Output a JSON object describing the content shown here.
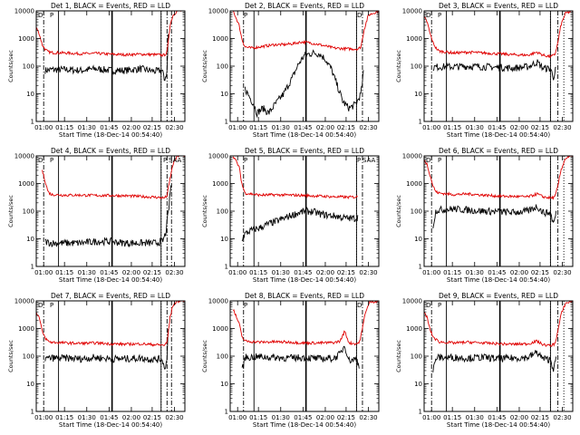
{
  "colors": {
    "events": "#000000",
    "lld": "#e00000",
    "axis": "#000000",
    "background": "#ffffff"
  },
  "xlabel": "Start Time (18-Dec-14 00:54:40)",
  "ylabel": "Counts/sec",
  "xticks": [
    "01:00",
    "01:15",
    "01:30",
    "01:45",
    "02:00",
    "02:15",
    "02:30"
  ],
  "yticks": [
    "1",
    "10",
    "100",
    "1000",
    "10000"
  ],
  "chart_data": [
    {
      "type": "line",
      "title": "Det 1, BLACK = Events, RED = LLD",
      "corner_labels": [
        "D",
        "P"
      ],
      "xlim_min": [
        0,
        100
      ],
      "ylim": [
        1,
        10000
      ],
      "yscale": "log",
      "vlines": [
        {
          "x": 5,
          "style": "dashdot"
        },
        {
          "x": 15,
          "style": "solid"
        },
        {
          "x": 51,
          "style": "solid"
        },
        {
          "x": 84,
          "style": "solid"
        },
        {
          "x": 84,
          "style": "dotted"
        },
        {
          "x": 88,
          "style": "dashdot"
        },
        {
          "x": 91,
          "style": "dashdot"
        }
      ],
      "series": [
        {
          "id": "lld",
          "x": [
            0,
            2,
            4,
            6,
            8,
            10,
            20,
            30,
            40,
            50,
            60,
            70,
            80,
            86,
            88,
            90,
            92,
            95,
            100
          ],
          "y": [
            2500,
            1500,
            600,
            400,
            330,
            310,
            300,
            280,
            290,
            270,
            260,
            270,
            260,
            250,
            300,
            3000,
            7000,
            10000,
            10000
          ]
        },
        {
          "id": "events",
          "x": [
            6,
            10,
            20,
            30,
            40,
            50,
            60,
            70,
            80,
            85,
            86,
            88,
            89
          ],
          "y": [
            70,
            75,
            75,
            70,
            80,
            70,
            70,
            80,
            65,
            70,
            30,
            60,
            3000
          ]
        }
      ]
    },
    {
      "type": "line",
      "title": "Det 2, BLACK = Events, RED = LLD",
      "corner_labels": [
        "",
        "P",
        "D"
      ],
      "xlim_min": [
        0,
        100
      ],
      "ylim": [
        1,
        10000
      ],
      "yscale": "log",
      "vlines": [
        {
          "x": 9,
          "style": "dashdot"
        },
        {
          "x": 16,
          "style": "solid"
        },
        {
          "x": 51,
          "style": "solid"
        },
        {
          "x": 85,
          "style": "solid"
        },
        {
          "x": 85,
          "style": "dotted"
        },
        {
          "x": 89,
          "style": "dashdot"
        }
      ],
      "series": [
        {
          "id": "lld",
          "x": [
            2,
            6,
            8,
            10,
            14,
            20,
            30,
            36,
            42,
            48,
            54,
            60,
            70,
            80,
            86,
            88,
            90,
            93,
            100
          ],
          "y": [
            10000,
            3000,
            900,
            500,
            450,
            500,
            600,
            600,
            650,
            750,
            700,
            600,
            450,
            420,
            420,
            500,
            2000,
            7000,
            10000
          ]
        },
        {
          "id": "events",
          "x": [
            10,
            16,
            18,
            22,
            26,
            30,
            36,
            42,
            46,
            50,
            56,
            60,
            64,
            68,
            72,
            76,
            80,
            84,
            86,
            88,
            90
          ],
          "y": [
            15,
            4,
            2,
            3,
            2,
            4,
            10,
            40,
            120,
            250,
            300,
            280,
            180,
            80,
            20,
            5,
            3,
            4,
            6,
            10,
            80
          ]
        }
      ]
    },
    {
      "type": "line",
      "title": "Det 3, BLACK = Events, RED = LLD",
      "corner_labels": [
        "D",
        "P"
      ],
      "xlim_min": [
        0,
        100
      ],
      "ylim": [
        1,
        10000
      ],
      "yscale": "log",
      "vlines": [
        {
          "x": 5,
          "style": "dashdot"
        },
        {
          "x": 15,
          "style": "solid"
        },
        {
          "x": 51,
          "style": "solid"
        },
        {
          "x": 85,
          "style": "solid"
        },
        {
          "x": 85,
          "style": "dotted"
        },
        {
          "x": 90,
          "style": "dashdot"
        },
        {
          "x": 94,
          "style": "dotted"
        }
      ],
      "series": [
        {
          "id": "lld",
          "x": [
            0,
            2,
            4,
            6,
            8,
            10,
            20,
            30,
            40,
            50,
            60,
            70,
            76,
            80,
            85,
            88,
            90,
            92,
            95,
            100
          ],
          "y": [
            6000,
            4000,
            1500,
            700,
            450,
            350,
            300,
            320,
            300,
            280,
            260,
            250,
            320,
            250,
            220,
            260,
            700,
            3000,
            8000,
            10000
          ]
        },
        {
          "id": "events",
          "x": [
            6,
            10,
            20,
            30,
            40,
            50,
            60,
            70,
            76,
            80,
            85,
            87,
            89
          ],
          "y": [
            90,
            95,
            95,
            100,
            95,
            90,
            85,
            95,
            140,
            85,
            80,
            40,
            90
          ]
        }
      ]
    },
    {
      "type": "line",
      "title": "Det 4, BLACK = Events, RED = LLD",
      "corner_labels": [
        "D",
        "P",
        "P",
        "SAA"
      ],
      "xlim_min": [
        0,
        100
      ],
      "ylim": [
        1,
        10000
      ],
      "yscale": "log",
      "vlines": [
        {
          "x": 5,
          "style": "dashdot"
        },
        {
          "x": 15,
          "style": "solid"
        },
        {
          "x": 51,
          "style": "solid"
        },
        {
          "x": 84,
          "style": "solid"
        },
        {
          "x": 84,
          "style": "dotted"
        },
        {
          "x": 88,
          "style": "dashdot"
        },
        {
          "x": 91,
          "style": "dashdot"
        }
      ],
      "series": [
        {
          "id": "lld",
          "x": [
            4,
            6,
            8,
            10,
            20,
            30,
            40,
            50,
            60,
            70,
            80,
            86,
            88,
            90,
            92,
            95,
            100
          ],
          "y": [
            3000,
            1200,
            500,
            400,
            380,
            380,
            370,
            370,
            360,
            340,
            320,
            300,
            350,
            1500,
            5000,
            10000,
            10000
          ]
        },
        {
          "id": "events",
          "x": [
            6,
            10,
            20,
            30,
            40,
            50,
            60,
            70,
            80,
            85,
            87,
            89,
            91
          ],
          "y": [
            8,
            7,
            7,
            7,
            8,
            8,
            7,
            7,
            7,
            8,
            15,
            100,
            1500
          ]
        }
      ]
    },
    {
      "type": "line",
      "title": "Det 5, BLACK = Events, RED = LLD",
      "corner_labels": [
        "",
        "P",
        "P",
        "SAA"
      ],
      "xlim_min": [
        0,
        100
      ],
      "ylim": [
        1,
        10000
      ],
      "yscale": "log",
      "vlines": [
        {
          "x": 9,
          "style": "dashdot"
        },
        {
          "x": 16,
          "style": "solid"
        },
        {
          "x": 51,
          "style": "solid"
        },
        {
          "x": 85,
          "style": "solid"
        },
        {
          "x": 85,
          "style": "dotted"
        },
        {
          "x": 89,
          "style": "dashdot"
        }
      ],
      "series": [
        {
          "id": "lld",
          "x": [
            2,
            6,
            8,
            10,
            20,
            30,
            40,
            50,
            60,
            70,
            80,
            86
          ],
          "y": [
            10000,
            4000,
            900,
            450,
            380,
            390,
            380,
            370,
            350,
            330,
            320,
            330
          ]
        },
        {
          "id": "events",
          "x": [
            8,
            10,
            14,
            20,
            26,
            32,
            38,
            44,
            50,
            56,
            60,
            66,
            72,
            78,
            84,
            86
          ],
          "y": [
            10,
            15,
            20,
            25,
            35,
            45,
            60,
            80,
            100,
            95,
            80,
            70,
            65,
            55,
            55,
            60
          ]
        }
      ]
    },
    {
      "type": "line",
      "title": "Det 6, BLACK = Events, RED = LLD",
      "corner_labels": [
        "D",
        "P"
      ],
      "xlim_min": [
        0,
        100
      ],
      "ylim": [
        1,
        10000
      ],
      "yscale": "log",
      "vlines": [
        {
          "x": 5,
          "style": "dashdot"
        },
        {
          "x": 15,
          "style": "solid"
        },
        {
          "x": 51,
          "style": "solid"
        },
        {
          "x": 85,
          "style": "solid"
        },
        {
          "x": 85,
          "style": "dotted"
        },
        {
          "x": 90,
          "style": "dashdot"
        },
        {
          "x": 94,
          "style": "dotted"
        }
      ],
      "series": [
        {
          "id": "lld",
          "x": [
            0,
            2,
            4,
            6,
            8,
            10,
            20,
            30,
            40,
            50,
            60,
            70,
            76,
            80,
            85,
            88,
            90,
            92,
            95,
            100
          ],
          "y": [
            7000,
            5000,
            2000,
            800,
            500,
            450,
            400,
            420,
            380,
            350,
            340,
            330,
            420,
            330,
            300,
            320,
            800,
            3000,
            8000,
            10000
          ]
        },
        {
          "id": "events",
          "x": [
            6,
            8,
            10,
            20,
            30,
            40,
            50,
            60,
            70,
            76,
            80,
            85,
            87,
            89
          ],
          "y": [
            30,
            110,
            110,
            120,
            110,
            100,
            95,
            90,
            100,
            150,
            90,
            85,
            35,
            90
          ]
        }
      ]
    },
    {
      "type": "line",
      "title": "Det 7, BLACK = Events, RED = LLD",
      "corner_labels": [
        "D",
        "P"
      ],
      "xlim_min": [
        0,
        100
      ],
      "ylim": [
        1,
        10000
      ],
      "yscale": "log",
      "vlines": [
        {
          "x": 5,
          "style": "dashdot"
        },
        {
          "x": 15,
          "style": "solid"
        },
        {
          "x": 51,
          "style": "solid"
        },
        {
          "x": 84,
          "style": "solid"
        },
        {
          "x": 84,
          "style": "dotted"
        },
        {
          "x": 88,
          "style": "dashdot"
        },
        {
          "x": 91,
          "style": "dashdot"
        }
      ],
      "series": [
        {
          "id": "lld",
          "x": [
            0,
            2,
            4,
            6,
            8,
            10,
            20,
            30,
            40,
            50,
            60,
            70,
            80,
            86,
            88,
            90,
            92,
            95,
            100
          ],
          "y": [
            4000,
            2500,
            800,
            450,
            350,
            320,
            300,
            290,
            300,
            280,
            270,
            280,
            260,
            250,
            300,
            2500,
            7000,
            10000,
            10000
          ]
        },
        {
          "id": "events",
          "x": [
            6,
            10,
            20,
            30,
            40,
            50,
            60,
            70,
            80,
            85,
            86,
            88,
            89
          ],
          "y": [
            80,
            85,
            85,
            80,
            90,
            80,
            80,
            85,
            75,
            80,
            35,
            70,
            2500
          ]
        }
      ]
    },
    {
      "type": "line",
      "title": "Det 8, BLACK = Events, RED = LLD",
      "corner_labels": [
        "",
        "P",
        "D"
      ],
      "xlim_min": [
        0,
        100
      ],
      "ylim": [
        1,
        10000
      ],
      "yscale": "log",
      "vlines": [
        {
          "x": 9,
          "style": "dashdot"
        },
        {
          "x": 16,
          "style": "solid"
        },
        {
          "x": 51,
          "style": "solid"
        },
        {
          "x": 85,
          "style": "solid"
        },
        {
          "x": 85,
          "style": "dotted"
        },
        {
          "x": 89,
          "style": "dashdot"
        }
      ],
      "series": [
        {
          "id": "lld",
          "x": [
            2,
            6,
            8,
            10,
            20,
            30,
            40,
            50,
            60,
            70,
            74,
            77,
            80,
            85,
            87,
            89,
            91,
            94,
            100
          ],
          "y": [
            5000,
            1500,
            500,
            350,
            320,
            330,
            320,
            300,
            300,
            310,
            350,
            800,
            300,
            280,
            320,
            1000,
            4000,
            9000,
            10000
          ]
        },
        {
          "id": "events",
          "x": [
            8,
            10,
            20,
            30,
            40,
            50,
            60,
            70,
            74,
            77,
            80,
            85,
            87
          ],
          "y": [
            30,
            90,
            95,
            90,
            85,
            90,
            80,
            85,
            120,
            250,
            70,
            80,
            40
          ]
        }
      ]
    },
    {
      "type": "line",
      "title": "Det 9, BLACK = Events, RED = LLD",
      "corner_labels": [
        "D",
        "P"
      ],
      "xlim_min": [
        0,
        100
      ],
      "ylim": [
        1,
        10000
      ],
      "yscale": "log",
      "vlines": [
        {
          "x": 5,
          "style": "dashdot"
        },
        {
          "x": 15,
          "style": "solid"
        },
        {
          "x": 51,
          "style": "solid"
        },
        {
          "x": 85,
          "style": "solid"
        },
        {
          "x": 85,
          "style": "dotted"
        },
        {
          "x": 90,
          "style": "dashdot"
        },
        {
          "x": 94,
          "style": "dotted"
        }
      ],
      "series": [
        {
          "id": "lld",
          "x": [
            0,
            2,
            4,
            6,
            8,
            10,
            20,
            30,
            40,
            50,
            60,
            70,
            76,
            80,
            85,
            88,
            90,
            92,
            95,
            100
          ],
          "y": [
            4000,
            2500,
            900,
            500,
            400,
            330,
            300,
            320,
            300,
            280,
            270,
            280,
            350,
            260,
            240,
            280,
            800,
            3000,
            8000,
            10000
          ]
        },
        {
          "id": "events",
          "x": [
            6,
            8,
            10,
            20,
            30,
            40,
            50,
            60,
            70,
            76,
            80,
            85,
            87,
            89
          ],
          "y": [
            30,
            85,
            90,
            90,
            85,
            90,
            80,
            85,
            90,
            140,
            80,
            75,
            35,
            80
          ]
        }
      ]
    }
  ]
}
